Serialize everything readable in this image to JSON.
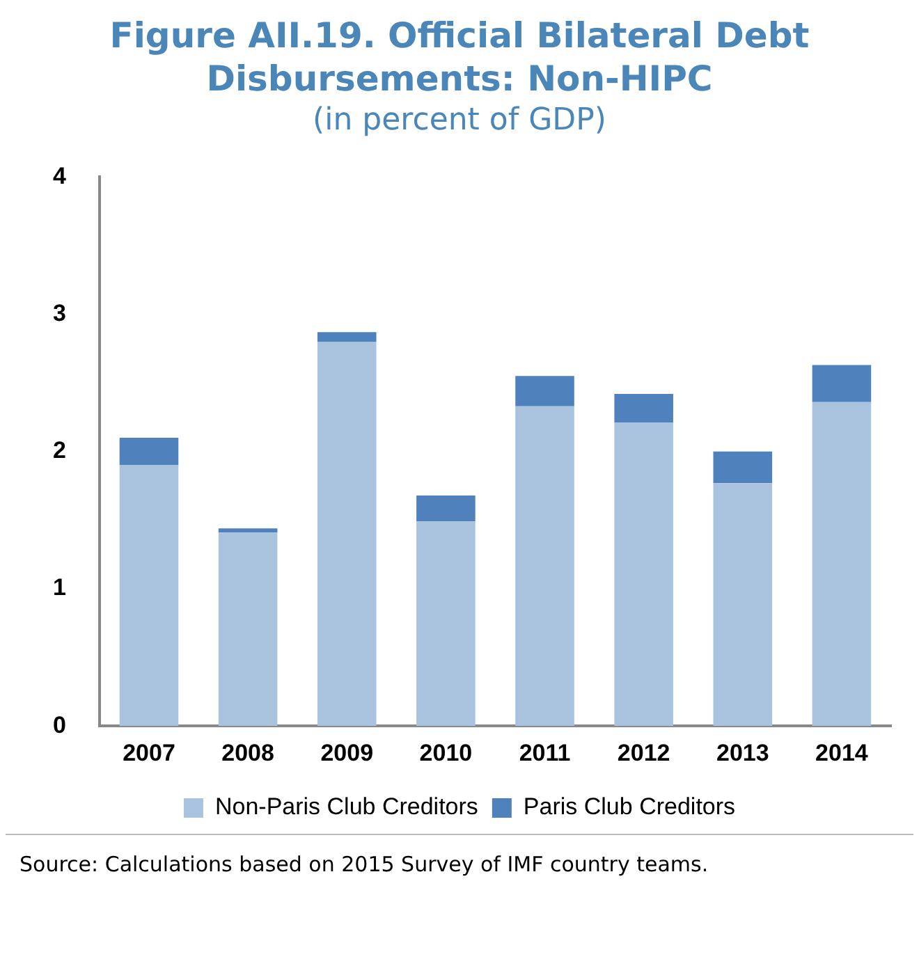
{
  "chart_data": {
    "type": "bar",
    "title": "Figure AII.19. Official Bilateral Debt Disbursements: Non-HIPC",
    "subtitle": "(in percent of GDP)",
    "categories": [
      "2007",
      "2008",
      "2009",
      "2010",
      "2011",
      "2012",
      "2013",
      "2014"
    ],
    "series": [
      {
        "name": "Non-Paris Club Creditors",
        "color": "#a9c3df",
        "values": [
          1.9,
          1.41,
          2.8,
          1.49,
          2.33,
          2.21,
          1.77,
          2.36
        ]
      },
      {
        "name": "Paris Club Creditors",
        "color": "#4f81bd",
        "values": [
          0.2,
          0.03,
          0.07,
          0.19,
          0.22,
          0.21,
          0.23,
          0.27
        ]
      }
    ],
    "stacked": true,
    "ylim": [
      0,
      4
    ],
    "yticks": [
      0,
      1,
      2,
      3,
      4
    ],
    "grid": false,
    "legend": "bottom",
    "annotations": [
      "Source: Calculations based on 2015 Survey of IMF country teams."
    ]
  }
}
